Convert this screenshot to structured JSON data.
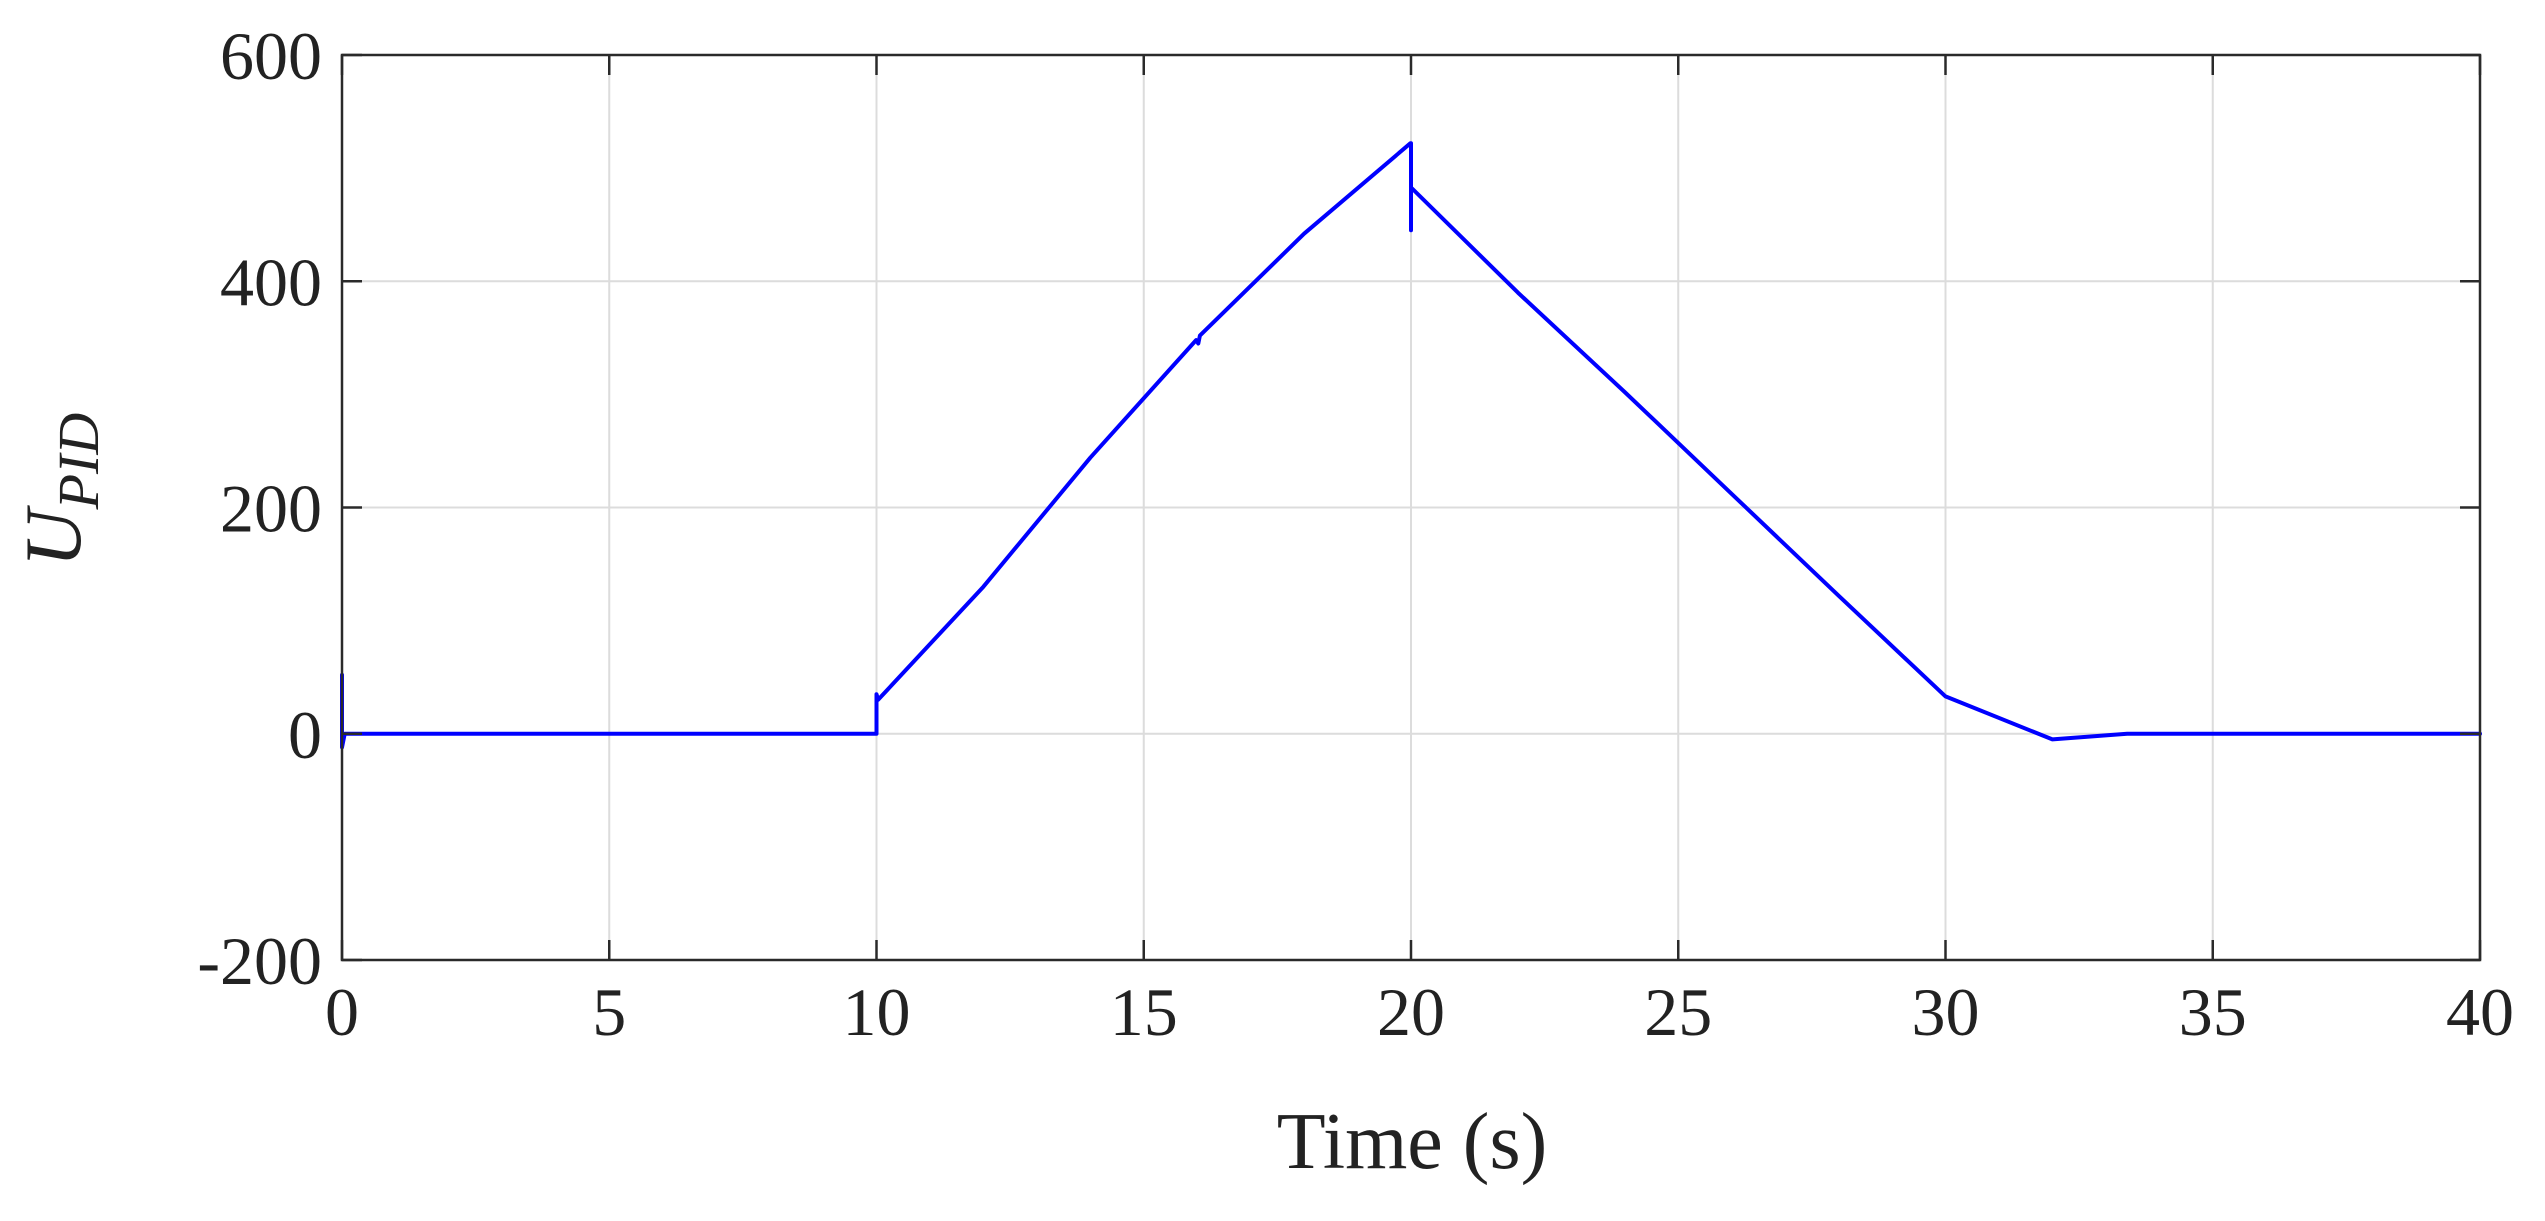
{
  "chart_data": {
    "type": "line",
    "title": "",
    "xlabel": "Time (s)",
    "ylabel_main": "U",
    "ylabel_sub": "PID",
    "xlim": [
      0,
      40
    ],
    "ylim": [
      -200,
      600
    ],
    "xticks": [
      0,
      5,
      10,
      15,
      20,
      25,
      30,
      35,
      40
    ],
    "xtick_labels": [
      "0",
      "5",
      "10",
      "15",
      "20",
      "25",
      "30",
      "35",
      "40"
    ],
    "yticks": [
      -200,
      0,
      200,
      400,
      600
    ],
    "ytick_labels": [
      "-200",
      "0",
      "200",
      "400",
      "600"
    ],
    "grid": true,
    "series": [
      {
        "color": "#0000ff",
        "x": [
          0,
          0,
          0,
          0.05,
          2,
          4,
          6,
          8,
          9.99,
          10,
          10,
          10.03,
          12,
          14,
          15.98,
          16.02,
          16.05,
          18,
          19.99,
          20,
          20,
          20,
          20.02,
          22,
          24,
          26,
          28,
          30,
          32,
          33.4,
          34,
          36,
          38,
          40
        ],
        "y": [
          0,
          52,
          -12,
          0,
          0,
          0,
          0,
          0,
          0,
          0,
          35,
          30,
          130,
          244,
          348,
          345,
          352,
          442,
          522,
          522,
          445,
          482,
          482,
          390,
          302,
          212,
          122,
          33,
          -5,
          0,
          0,
          0,
          0,
          0
        ]
      }
    ]
  }
}
